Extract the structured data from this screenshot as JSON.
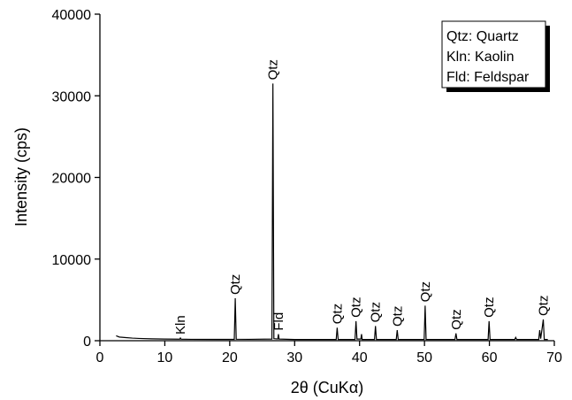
{
  "chart_data": {
    "type": "line",
    "xlabel": "2θ (CuKα)",
    "ylabel": "Intensity (cps)",
    "x": [
      2.5,
      3,
      4,
      5,
      6,
      8,
      10,
      12,
      12.3,
      12.4,
      12.5,
      14,
      18,
      20.7,
      20.85,
      21,
      23,
      26.5,
      26.65,
      26.8,
      27.4,
      27.5,
      27.6,
      30,
      36.4,
      36.55,
      36.7,
      39.3,
      39.45,
      39.6,
      40.2,
      40.3,
      40.4,
      42.3,
      42.45,
      42.6,
      45.65,
      45.8,
      45.95,
      49.95,
      50.1,
      50.25,
      54.7,
      54.85,
      55,
      59.8,
      59.95,
      60.1,
      63.9,
      64.05,
      64.2,
      67.6,
      67.75,
      67.9,
      68.15,
      68.3,
      68.45,
      69
    ],
    "values": [
      600,
      450,
      380,
      320,
      280,
      230,
      200,
      190,
      190,
      330,
      190,
      170,
      160,
      160,
      5200,
      180,
      170,
      200,
      31500,
      250,
      200,
      800,
      200,
      150,
      150,
      1600,
      150,
      150,
      2400,
      200,
      200,
      800,
      150,
      150,
      1800,
      150,
      150,
      1300,
      150,
      150,
      4300,
      150,
      150,
      900,
      150,
      150,
      2400,
      150,
      150,
      400,
      150,
      150,
      1300,
      250,
      1700,
      2600,
      150,
      150
    ],
    "color": "#000000",
    "xlim": [
      0,
      70
    ],
    "xticks": [
      0,
      10,
      20,
      30,
      40,
      50,
      60,
      70
    ],
    "ylim": [
      0,
      40000
    ],
    "yticks": [
      0,
      10000,
      20000,
      30000,
      40000
    ],
    "annotations": [
      {
        "text": "Kln",
        "x": 12.4
      },
      {
        "text": "Qtz",
        "x": 20.85
      },
      {
        "text": "Qtz",
        "x": 26.65
      },
      {
        "text": "Fld",
        "x": 27.5
      },
      {
        "text": "Qtz",
        "x": 36.55
      },
      {
        "text": "Qtz",
        "x": 39.45
      },
      {
        "text": "Qtz",
        "x": 42.45
      },
      {
        "text": "Qtz",
        "x": 45.8
      },
      {
        "text": "Qtz",
        "x": 50.1
      },
      {
        "text": "Qtz",
        "x": 54.85
      },
      {
        "text": "Qtz",
        "x": 59.95
      },
      {
        "text": "Qtz",
        "x": 68.3
      }
    ],
    "key": [
      "Qtz: Quartz",
      "Kln: Kaolin",
      "Fld: Feldspar"
    ]
  }
}
